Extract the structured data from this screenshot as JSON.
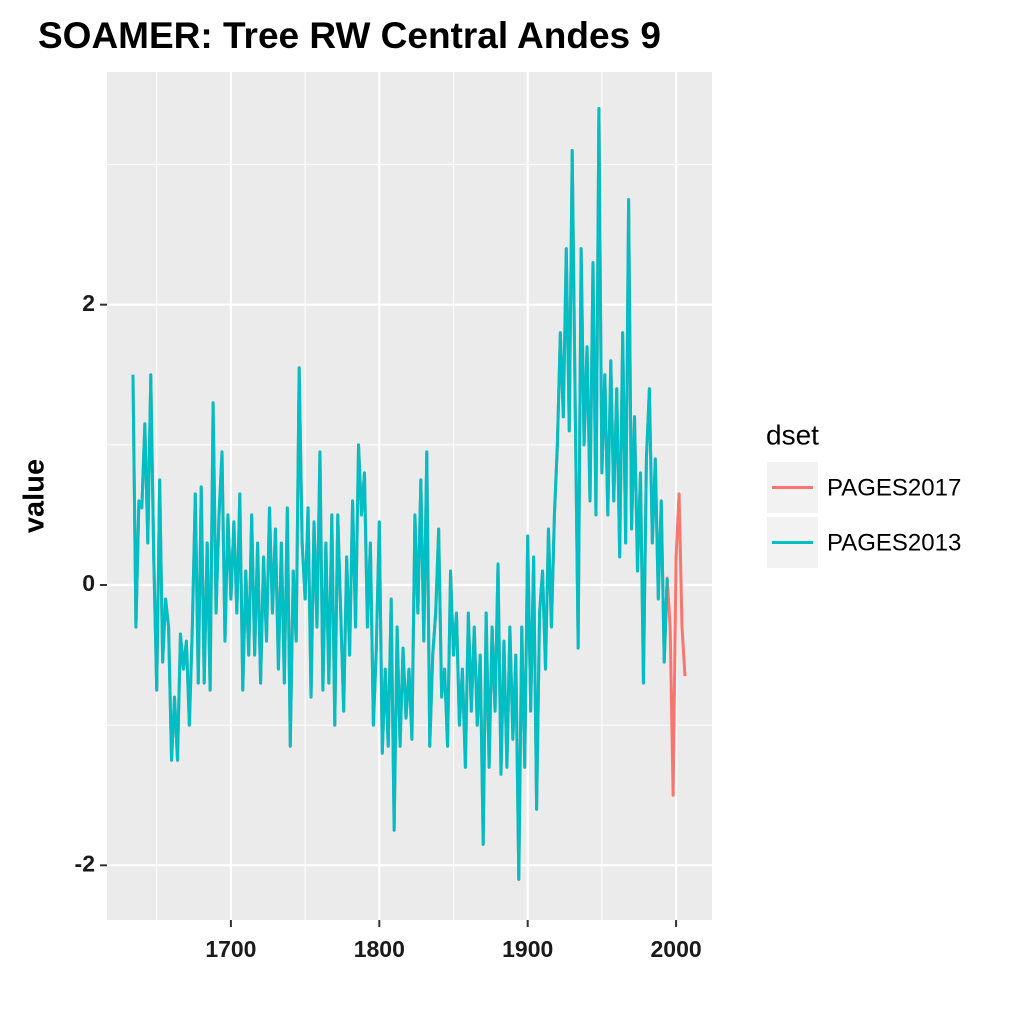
{
  "chart_data": {
    "type": "line",
    "title": "SOAMER: Tree RW Central Andes 9",
    "y_label": "value",
    "legend_title": "dset",
    "legend": "right",
    "grid": true,
    "xlim": [
      1616.5,
      2024.2
    ],
    "ylim": [
      -2.39,
      3.66
    ],
    "xticks": [
      1700,
      1800,
      1900,
      2000
    ],
    "yticks": [
      -2,
      0,
      2
    ],
    "x": [
      1634,
      1636,
      1638,
      1640,
      1642,
      1644,
      1646,
      1648,
      1650,
      1652,
      1654,
      1656,
      1658,
      1660,
      1662,
      1664,
      1666,
      1668,
      1670,
      1672,
      1674,
      1676,
      1678,
      1680,
      1682,
      1684,
      1686,
      1688,
      1690,
      1692,
      1694,
      1696,
      1698,
      1700,
      1702,
      1704,
      1706,
      1708,
      1710,
      1712,
      1714,
      1716,
      1718,
      1720,
      1722,
      1724,
      1726,
      1728,
      1730,
      1732,
      1734,
      1736,
      1738,
      1740,
      1742,
      1744,
      1746,
      1748,
      1750,
      1752,
      1754,
      1756,
      1758,
      1760,
      1762,
      1764,
      1766,
      1768,
      1770,
      1772,
      1774,
      1776,
      1778,
      1780,
      1782,
      1784,
      1786,
      1788,
      1790,
      1792,
      1794,
      1796,
      1798,
      1800,
      1802,
      1804,
      1806,
      1808,
      1810,
      1812,
      1814,
      1816,
      1818,
      1820,
      1822,
      1824,
      1826,
      1828,
      1830,
      1832,
      1834,
      1836,
      1838,
      1840,
      1842,
      1844,
      1846,
      1848,
      1850,
      1852,
      1854,
      1856,
      1858,
      1860,
      1862,
      1864,
      1866,
      1868,
      1870,
      1872,
      1874,
      1876,
      1878,
      1880,
      1882,
      1884,
      1886,
      1888,
      1890,
      1892,
      1894,
      1896,
      1898,
      1900,
      1902,
      1904,
      1906,
      1908,
      1910,
      1912,
      1914,
      1916,
      1918,
      1920,
      1922,
      1924,
      1926,
      1928,
      1930,
      1932,
      1934,
      1936,
      1938,
      1940,
      1942,
      1944,
      1946,
      1948,
      1950,
      1952,
      1954,
      1956,
      1958,
      1960,
      1962,
      1964,
      1966,
      1968,
      1970,
      1972,
      1974,
      1976,
      1978,
      1980,
      1982,
      1984,
      1986,
      1988,
      1990,
      1992,
      1994,
      1996,
      1998,
      2000,
      2002,
      2004,
      2006
    ],
    "series": [
      {
        "name": "PAGES2017",
        "color": "#F8766D",
        "values": [
          1.5,
          -0.3,
          0.6,
          0.55,
          1.15,
          0.3,
          1.5,
          0.2,
          -0.75,
          0.75,
          -0.55,
          -0.1,
          -0.3,
          -1.25,
          -0.8,
          -1.25,
          -0.35,
          -0.6,
          -0.4,
          -1.0,
          -0.3,
          0.65,
          -0.7,
          0.7,
          -0.7,
          0.3,
          -0.75,
          1.3,
          -0.2,
          0.5,
          0.95,
          -0.4,
          0.5,
          -0.1,
          0.45,
          -0.2,
          0.65,
          -0.75,
          0.1,
          -0.5,
          0.5,
          -0.5,
          0.3,
          -0.7,
          0.2,
          -0.4,
          0.55,
          -0.2,
          0.4,
          -0.6,
          0.3,
          -0.7,
          0.55,
          -1.15,
          0.1,
          -0.4,
          1.55,
          0.3,
          -0.1,
          0.55,
          -0.8,
          0.45,
          -0.3,
          0.95,
          -0.75,
          0.3,
          -0.7,
          0.5,
          -1.0,
          0.5,
          -0.2,
          -0.9,
          0.2,
          -0.5,
          0.6,
          -0.3,
          1.0,
          0.5,
          0.8,
          -0.3,
          0.3,
          -1.0,
          -0.45,
          0.45,
          -1.2,
          -0.6,
          -1.15,
          -0.1,
          -1.75,
          -0.3,
          -1.15,
          -0.45,
          -0.95,
          -0.6,
          -1.1,
          0.5,
          -0.2,
          0.75,
          -0.4,
          0.95,
          -1.15,
          -0.5,
          -0.2,
          0.4,
          -0.8,
          -0.6,
          -1.15,
          0.1,
          -0.5,
          -0.2,
          -1.0,
          -0.6,
          -1.3,
          -0.2,
          -0.9,
          -0.3,
          -1.0,
          -0.5,
          -1.85,
          -0.2,
          -1.3,
          -0.3,
          -0.9,
          0.15,
          -1.35,
          -0.4,
          -1.3,
          -0.3,
          -1.1,
          -0.5,
          -2.1,
          -0.3,
          -1.3,
          0.35,
          -0.9,
          0.2,
          -1.6,
          -0.2,
          0.1,
          -0.6,
          0.4,
          -0.3,
          0.5,
          1.0,
          1.8,
          1.2,
          2.4,
          1.1,
          3.1,
          1.3,
          -0.45,
          2.4,
          1.0,
          1.7,
          0.6,
          2.3,
          0.5,
          3.4,
          0.8,
          1.5,
          0.5,
          1.6,
          0.6,
          1.4,
          0.2,
          1.8,
          0.3,
          2.75,
          0.4,
          1.2,
          0.1,
          0.8,
          -0.7,
          0.9,
          1.4,
          0.3,
          0.9,
          -0.1,
          0.6,
          -0.55,
          0.05,
          -0.3,
          -1.5,
          0.2,
          0.65,
          -0.3,
          -0.65
        ]
      },
      {
        "name": "PAGES2013",
        "color": "#00BFC4",
        "values": [
          1.5,
          -0.3,
          0.6,
          0.55,
          1.15,
          0.3,
          1.5,
          0.2,
          -0.75,
          0.75,
          -0.55,
          -0.1,
          -0.3,
          -1.25,
          -0.8,
          -1.25,
          -0.35,
          -0.6,
          -0.4,
          -1.0,
          -0.3,
          0.65,
          -0.7,
          0.7,
          -0.7,
          0.3,
          -0.75,
          1.3,
          -0.2,
          0.5,
          0.95,
          -0.4,
          0.5,
          -0.1,
          0.45,
          -0.2,
          0.65,
          -0.75,
          0.1,
          -0.5,
          0.5,
          -0.5,
          0.3,
          -0.7,
          0.2,
          -0.4,
          0.55,
          -0.2,
          0.4,
          -0.6,
          0.3,
          -0.7,
          0.55,
          -1.15,
          0.1,
          -0.4,
          1.55,
          0.3,
          -0.1,
          0.55,
          -0.8,
          0.45,
          -0.3,
          0.95,
          -0.75,
          0.3,
          -0.7,
          0.5,
          -1.0,
          0.5,
          -0.2,
          -0.9,
          0.2,
          -0.5,
          0.6,
          -0.3,
          1.0,
          0.5,
          0.8,
          -0.3,
          0.3,
          -1.0,
          -0.45,
          0.45,
          -1.2,
          -0.6,
          -1.15,
          -0.1,
          -1.75,
          -0.3,
          -1.15,
          -0.45,
          -0.95,
          -0.6,
          -1.1,
          0.5,
          -0.2,
          0.75,
          -0.4,
          0.95,
          -1.15,
          -0.5,
          -0.2,
          0.4,
          -0.8,
          -0.6,
          -1.15,
          0.1,
          -0.5,
          -0.2,
          -1.0,
          -0.6,
          -1.3,
          -0.2,
          -0.9,
          -0.3,
          -1.0,
          -0.5,
          -1.85,
          -0.2,
          -1.3,
          -0.3,
          -0.9,
          0.15,
          -1.35,
          -0.4,
          -1.3,
          -0.3,
          -1.1,
          -0.5,
          -2.1,
          -0.3,
          -1.3,
          0.35,
          -0.9,
          0.2,
          -1.6,
          -0.2,
          0.1,
          -0.6,
          0.4,
          -0.3,
          0.5,
          1.0,
          1.8,
          1.2,
          2.4,
          1.1,
          3.1,
          1.3,
          -0.45,
          2.4,
          1.0,
          1.7,
          0.6,
          2.3,
          0.5,
          3.4,
          0.8,
          1.5,
          0.5,
          1.6,
          0.6,
          1.4,
          0.2,
          1.8,
          0.3,
          2.75,
          0.4,
          1.2,
          0.1,
          0.8,
          -0.7,
          0.9,
          1.4,
          0.3,
          0.9,
          -0.1,
          0.6,
          -0.55,
          0.05,
          null,
          null,
          null,
          null,
          null,
          null
        ]
      }
    ]
  }
}
